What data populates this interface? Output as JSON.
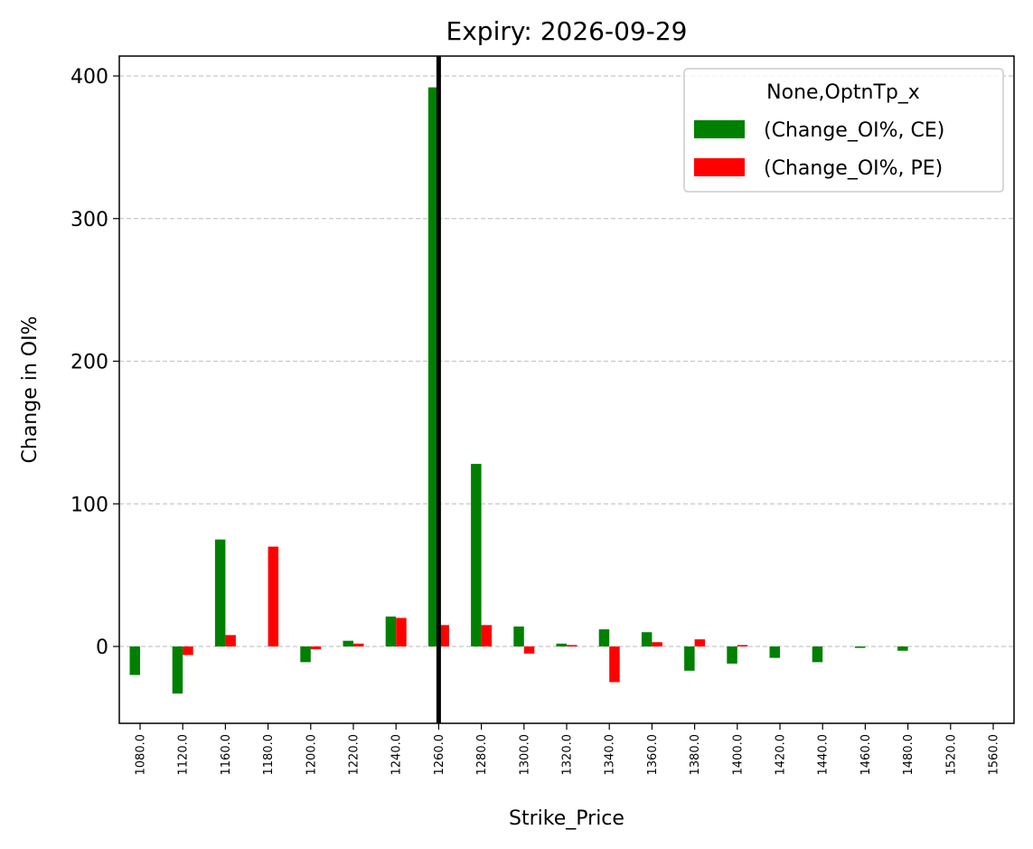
{
  "chart_data": {
    "type": "bar",
    "title": "Expiry: 2026-09-29",
    "xlabel": "Strike_Price",
    "ylabel": "Change in OI%",
    "ylim": [
      -55,
      415
    ],
    "yticks": [
      0,
      100,
      200,
      300,
      400
    ],
    "grid": "y-dashed",
    "categories": [
      "1080.0",
      "1120.0",
      "1160.0",
      "1180.0",
      "1200.0",
      "1220.0",
      "1240.0",
      "1260.0",
      "1280.0",
      "1300.0",
      "1320.0",
      "1340.0",
      "1360.0",
      "1380.0",
      "1400.0",
      "1420.0",
      "1440.0",
      "1460.0",
      "1480.0",
      "1520.0",
      "1560.0"
    ],
    "series": [
      {
        "name": "(Change_OI%, CE)",
        "color": "#008000",
        "values": [
          -20,
          -33,
          75,
          0,
          -11,
          4,
          21,
          392,
          128,
          14,
          2,
          12,
          10,
          -17,
          -12,
          -8,
          -11,
          -1,
          -3,
          0,
          0
        ]
      },
      {
        "name": "(Change_OI%, PE)",
        "color": "#ff0000",
        "values": [
          0,
          -6,
          8,
          70,
          -2,
          2,
          20,
          15,
          15,
          -5,
          1,
          -25,
          3,
          5,
          1,
          0,
          0,
          0,
          0,
          0,
          0
        ]
      }
    ],
    "vline": {
      "category": "1260.0",
      "color": "#000000"
    },
    "legend": {
      "title": "None,OptnTp_x",
      "position": "top-right"
    }
  }
}
